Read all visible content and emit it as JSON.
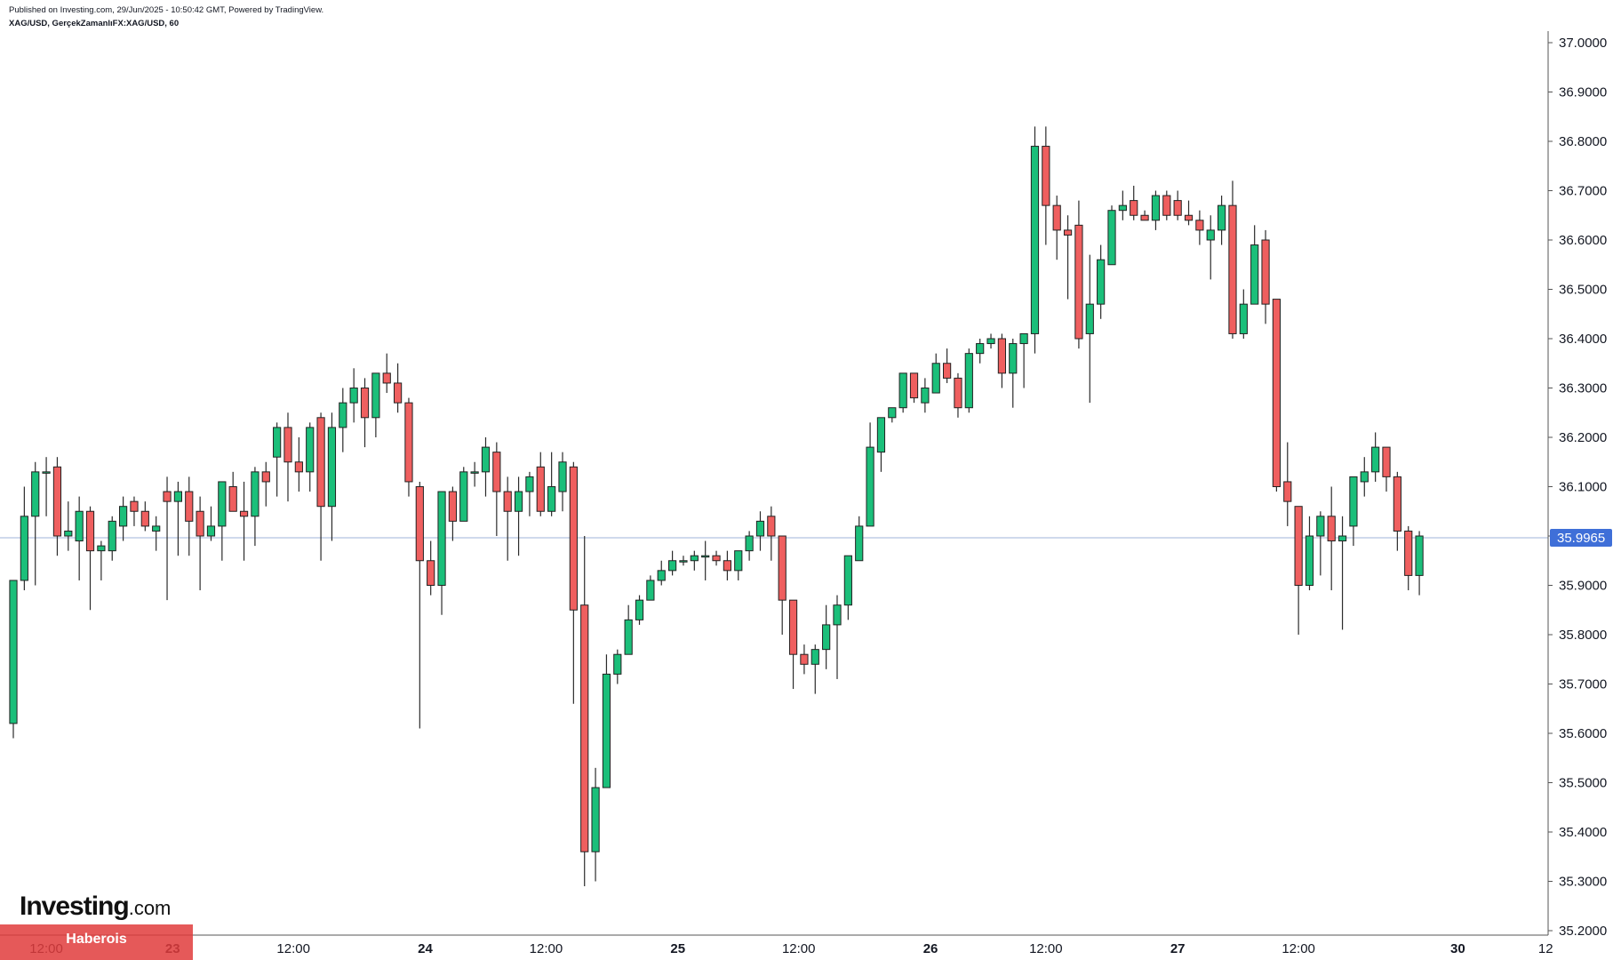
{
  "header": {
    "published": "Published on Investing.com, 29/Jun/2025 - 10:50:42 GMT, Powered by TradingView.",
    "symbol": "XAG/USD, GerçekZamanlıFX:XAG/USD, 60"
  },
  "logo": {
    "name": "Investing",
    "suffix": ".com"
  },
  "watermark": {
    "text": "Haberois"
  },
  "colors": {
    "up": "#1bbf7a",
    "down": "#ef5f5f",
    "wick": "#2b2b2b",
    "last_price": "#3f6fd8",
    "axis": "#555555"
  },
  "chart_data": {
    "type": "candlestick",
    "interval": "60",
    "ylim": [
      35.2,
      37.03
    ],
    "ytick_labels": [
      "35.2000",
      "35.3000",
      "35.4000",
      "35.5000",
      "35.6000",
      "35.7000",
      "35.8000",
      "35.9000",
      "36.0000",
      "36.1000",
      "36.2000",
      "36.3000",
      "36.4000",
      "36.5000",
      "36.6000",
      "36.7000",
      "36.8000",
      "36.9000",
      "37.0000"
    ],
    "yticks": [
      35.2,
      35.3,
      35.4,
      35.5,
      35.6,
      35.7,
      35.8,
      35.9,
      36.0,
      36.1,
      36.2,
      36.3,
      36.4,
      36.5,
      36.6,
      36.7,
      36.8,
      36.9,
      37.0
    ],
    "xlim": [
      0,
      140
    ],
    "xticks": [
      {
        "x": 3,
        "label": "12:00",
        "day": false
      },
      {
        "x": 14.5,
        "label": "23",
        "day": true
      },
      {
        "x": 25.5,
        "label": "12:00",
        "day": false
      },
      {
        "x": 37.5,
        "label": "24",
        "day": true
      },
      {
        "x": 48.5,
        "label": "12:00",
        "day": false
      },
      {
        "x": 60.5,
        "label": "25",
        "day": true
      },
      {
        "x": 71.5,
        "label": "12:00",
        "day": false
      },
      {
        "x": 83.5,
        "label": "26",
        "day": true
      },
      {
        "x": 94,
        "label": "12:00",
        "day": false
      },
      {
        "x": 106,
        "label": "27",
        "day": true
      },
      {
        "x": 117,
        "label": "12:00",
        "day": false
      },
      {
        "x": 131.5,
        "label": "30",
        "day": true
      },
      {
        "x": 139.5,
        "label": "12",
        "day": false
      }
    ],
    "last_price": 35.9965,
    "last_price_label": "35.9965",
    "candles": [
      {
        "o": 35.62,
        "h": 35.91,
        "l": 35.59,
        "c": 35.91
      },
      {
        "o": 35.91,
        "h": 36.1,
        "l": 35.89,
        "c": 36.04
      },
      {
        "o": 36.04,
        "h": 36.15,
        "l": 35.9,
        "c": 36.13
      },
      {
        "o": 36.13,
        "h": 36.16,
        "l": 36.04,
        "c": 36.13
      },
      {
        "o": 36.14,
        "h": 36.16,
        "l": 35.96,
        "c": 36.0
      },
      {
        "o": 36.0,
        "h": 36.07,
        "l": 35.97,
        "c": 36.01
      },
      {
        "o": 35.99,
        "h": 36.08,
        "l": 35.91,
        "c": 36.05
      },
      {
        "o": 36.05,
        "h": 36.06,
        "l": 35.85,
        "c": 35.97
      },
      {
        "o": 35.97,
        "h": 35.99,
        "l": 35.91,
        "c": 35.98
      },
      {
        "o": 35.97,
        "h": 36.04,
        "l": 35.95,
        "c": 36.03
      },
      {
        "o": 36.02,
        "h": 36.08,
        "l": 35.99,
        "c": 36.06
      },
      {
        "o": 36.07,
        "h": 36.08,
        "l": 36.02,
        "c": 36.05
      },
      {
        "o": 36.05,
        "h": 36.07,
        "l": 36.01,
        "c": 36.02
      },
      {
        "o": 36.01,
        "h": 36.04,
        "l": 35.97,
        "c": 36.02
      },
      {
        "o": 36.09,
        "h": 36.12,
        "l": 35.87,
        "c": 36.07
      },
      {
        "o": 36.07,
        "h": 36.11,
        "l": 35.96,
        "c": 36.09
      },
      {
        "o": 36.09,
        "h": 36.12,
        "l": 35.96,
        "c": 36.03
      },
      {
        "o": 36.05,
        "h": 36.08,
        "l": 35.89,
        "c": 36.0
      },
      {
        "o": 36.0,
        "h": 36.06,
        "l": 35.99,
        "c": 36.02
      },
      {
        "o": 36.02,
        "h": 36.11,
        "l": 35.95,
        "c": 36.11
      },
      {
        "o": 36.1,
        "h": 36.13,
        "l": 36.05,
        "c": 36.05
      },
      {
        "o": 36.05,
        "h": 36.11,
        "l": 35.95,
        "c": 36.04
      },
      {
        "o": 36.04,
        "h": 36.14,
        "l": 35.98,
        "c": 36.13
      },
      {
        "o": 36.13,
        "h": 36.15,
        "l": 36.06,
        "c": 36.11
      },
      {
        "o": 36.16,
        "h": 36.23,
        "l": 36.08,
        "c": 36.22
      },
      {
        "o": 36.22,
        "h": 36.25,
        "l": 36.07,
        "c": 36.15
      },
      {
        "o": 36.15,
        "h": 36.2,
        "l": 36.09,
        "c": 36.13
      },
      {
        "o": 36.13,
        "h": 36.23,
        "l": 36.09,
        "c": 36.22
      },
      {
        "o": 36.24,
        "h": 36.25,
        "l": 35.95,
        "c": 36.06
      },
      {
        "o": 36.06,
        "h": 36.25,
        "l": 35.99,
        "c": 36.22
      },
      {
        "o": 36.22,
        "h": 36.3,
        "l": 36.17,
        "c": 36.27
      },
      {
        "o": 36.27,
        "h": 36.34,
        "l": 36.23,
        "c": 36.3
      },
      {
        "o": 36.3,
        "h": 36.32,
        "l": 36.18,
        "c": 36.24
      },
      {
        "o": 36.24,
        "h": 36.33,
        "l": 36.2,
        "c": 36.33
      },
      {
        "o": 36.33,
        "h": 36.37,
        "l": 36.29,
        "c": 36.31
      },
      {
        "o": 36.31,
        "h": 36.35,
        "l": 36.25,
        "c": 36.27
      },
      {
        "o": 36.27,
        "h": 36.28,
        "l": 36.08,
        "c": 36.11
      },
      {
        "o": 36.1,
        "h": 36.11,
        "l": 35.61,
        "c": 35.95
      },
      {
        "o": 35.95,
        "h": 35.99,
        "l": 35.88,
        "c": 35.9
      },
      {
        "o": 35.9,
        "h": 36.09,
        "l": 35.84,
        "c": 36.09
      },
      {
        "o": 36.09,
        "h": 36.1,
        "l": 35.99,
        "c": 36.03
      },
      {
        "o": 36.03,
        "h": 36.14,
        "l": 36.03,
        "c": 36.13
      },
      {
        "o": 36.13,
        "h": 36.15,
        "l": 36.1,
        "c": 36.13
      },
      {
        "o": 36.13,
        "h": 36.2,
        "l": 36.08,
        "c": 36.18
      },
      {
        "o": 36.17,
        "h": 36.19,
        "l": 36.0,
        "c": 36.09
      },
      {
        "o": 36.09,
        "h": 36.12,
        "l": 35.95,
        "c": 36.05
      },
      {
        "o": 36.05,
        "h": 36.12,
        "l": 35.96,
        "c": 36.09
      },
      {
        "o": 36.09,
        "h": 36.13,
        "l": 36.04,
        "c": 36.12
      },
      {
        "o": 36.14,
        "h": 36.17,
        "l": 36.04,
        "c": 36.05
      },
      {
        "o": 36.05,
        "h": 36.17,
        "l": 36.04,
        "c": 36.1
      },
      {
        "o": 36.09,
        "h": 36.17,
        "l": 36.05,
        "c": 36.15
      },
      {
        "o": 36.14,
        "h": 36.15,
        "l": 35.66,
        "c": 35.85
      },
      {
        "o": 35.86,
        "h": 36.0,
        "l": 35.29,
        "c": 35.36
      },
      {
        "o": 35.36,
        "h": 35.53,
        "l": 35.3,
        "c": 35.49
      },
      {
        "o": 35.49,
        "h": 35.76,
        "l": 35.49,
        "c": 35.72
      },
      {
        "o": 35.72,
        "h": 35.77,
        "l": 35.7,
        "c": 35.76
      },
      {
        "o": 35.76,
        "h": 35.86,
        "l": 35.76,
        "c": 35.83
      },
      {
        "o": 35.83,
        "h": 35.88,
        "l": 35.82,
        "c": 35.87
      },
      {
        "o": 35.87,
        "h": 35.92,
        "l": 35.87,
        "c": 35.91
      },
      {
        "o": 35.91,
        "h": 35.95,
        "l": 35.9,
        "c": 35.93
      },
      {
        "o": 35.93,
        "h": 35.97,
        "l": 35.92,
        "c": 35.95
      },
      {
        "o": 35.95,
        "h": 35.96,
        "l": 35.94,
        "c": 35.95
      },
      {
        "o": 35.95,
        "h": 35.97,
        "l": 35.93,
        "c": 35.96
      },
      {
        "o": 35.96,
        "h": 35.99,
        "l": 35.91,
        "c": 35.96
      },
      {
        "o": 35.96,
        "h": 35.97,
        "l": 35.94,
        "c": 35.95
      },
      {
        "o": 35.95,
        "h": 35.97,
        "l": 35.91,
        "c": 35.93
      },
      {
        "o": 35.93,
        "h": 35.97,
        "l": 35.91,
        "c": 35.97
      },
      {
        "o": 35.97,
        "h": 36.01,
        "l": 35.95,
        "c": 36.0
      },
      {
        "o": 36.0,
        "h": 36.05,
        "l": 35.97,
        "c": 36.03
      },
      {
        "o": 36.04,
        "h": 36.06,
        "l": 35.95,
        "c": 36.0
      },
      {
        "o": 36.0,
        "h": 36.0,
        "l": 35.8,
        "c": 35.87
      },
      {
        "o": 35.87,
        "h": 35.87,
        "l": 35.69,
        "c": 35.76
      },
      {
        "o": 35.76,
        "h": 35.78,
        "l": 35.72,
        "c": 35.74
      },
      {
        "o": 35.74,
        "h": 35.78,
        "l": 35.68,
        "c": 35.77
      },
      {
        "o": 35.77,
        "h": 35.86,
        "l": 35.73,
        "c": 35.82
      },
      {
        "o": 35.82,
        "h": 35.88,
        "l": 35.71,
        "c": 35.86
      },
      {
        "o": 35.86,
        "h": 35.96,
        "l": 35.83,
        "c": 35.96
      },
      {
        "o": 35.95,
        "h": 36.04,
        "l": 35.95,
        "c": 36.02
      },
      {
        "o": 36.02,
        "h": 36.23,
        "l": 36.02,
        "c": 36.18
      },
      {
        "o": 36.17,
        "h": 36.24,
        "l": 36.13,
        "c": 36.24
      },
      {
        "o": 36.24,
        "h": 36.26,
        "l": 36.23,
        "c": 36.26
      },
      {
        "o": 36.26,
        "h": 36.33,
        "l": 36.25,
        "c": 36.33
      },
      {
        "o": 36.33,
        "h": 36.33,
        "l": 36.27,
        "c": 36.28
      },
      {
        "o": 36.27,
        "h": 36.32,
        "l": 36.25,
        "c": 36.3
      },
      {
        "o": 36.29,
        "h": 36.37,
        "l": 36.29,
        "c": 36.35
      },
      {
        "o": 36.35,
        "h": 36.38,
        "l": 36.31,
        "c": 36.32
      },
      {
        "o": 36.32,
        "h": 36.33,
        "l": 36.24,
        "c": 36.26
      },
      {
        "o": 36.26,
        "h": 36.38,
        "l": 36.25,
        "c": 36.37
      },
      {
        "o": 36.37,
        "h": 36.4,
        "l": 36.35,
        "c": 36.39
      },
      {
        "o": 36.39,
        "h": 36.41,
        "l": 36.38,
        "c": 36.4
      },
      {
        "o": 36.4,
        "h": 36.41,
        "l": 36.3,
        "c": 36.33
      },
      {
        "o": 36.33,
        "h": 36.4,
        "l": 36.26,
        "c": 36.39
      },
      {
        "o": 36.39,
        "h": 36.4,
        "l": 36.3,
        "c": 36.41
      },
      {
        "o": 36.41,
        "h": 36.83,
        "l": 36.37,
        "c": 36.79
      },
      {
        "o": 36.79,
        "h": 36.83,
        "l": 36.59,
        "c": 36.67
      },
      {
        "o": 36.67,
        "h": 36.69,
        "l": 36.56,
        "c": 36.62
      },
      {
        "o": 36.62,
        "h": 36.65,
        "l": 36.48,
        "c": 36.61
      },
      {
        "o": 36.63,
        "h": 36.68,
        "l": 36.38,
        "c": 36.4
      },
      {
        "o": 36.41,
        "h": 36.57,
        "l": 36.27,
        "c": 36.47
      },
      {
        "o": 36.47,
        "h": 36.59,
        "l": 36.44,
        "c": 36.56
      },
      {
        "o": 36.55,
        "h": 36.67,
        "l": 36.55,
        "c": 36.66
      },
      {
        "o": 36.66,
        "h": 36.7,
        "l": 36.64,
        "c": 36.67
      },
      {
        "o": 36.68,
        "h": 36.71,
        "l": 36.64,
        "c": 36.65
      },
      {
        "o": 36.65,
        "h": 36.66,
        "l": 36.64,
        "c": 36.64
      },
      {
        "o": 36.64,
        "h": 36.7,
        "l": 36.62,
        "c": 36.69
      },
      {
        "o": 36.69,
        "h": 36.7,
        "l": 36.64,
        "c": 36.65
      },
      {
        "o": 36.68,
        "h": 36.7,
        "l": 36.64,
        "c": 36.65
      },
      {
        "o": 36.65,
        "h": 36.68,
        "l": 36.63,
        "c": 36.64
      },
      {
        "o": 36.64,
        "h": 36.66,
        "l": 36.59,
        "c": 36.62
      },
      {
        "o": 36.6,
        "h": 36.65,
        "l": 36.52,
        "c": 36.62
      },
      {
        "o": 36.62,
        "h": 36.69,
        "l": 36.59,
        "c": 36.67
      },
      {
        "o": 36.67,
        "h": 36.72,
        "l": 36.4,
        "c": 36.41
      },
      {
        "o": 36.41,
        "h": 36.5,
        "l": 36.4,
        "c": 36.47
      },
      {
        "o": 36.47,
        "h": 36.63,
        "l": 36.47,
        "c": 36.59
      },
      {
        "o": 36.6,
        "h": 36.62,
        "l": 36.43,
        "c": 36.47
      },
      {
        "o": 36.48,
        "h": 36.48,
        "l": 36.09,
        "c": 36.1
      },
      {
        "o": 36.11,
        "h": 36.19,
        "l": 36.02,
        "c": 36.07
      },
      {
        "o": 36.06,
        "h": 36.06,
        "l": 35.8,
        "c": 35.9
      },
      {
        "o": 35.9,
        "h": 36.04,
        "l": 35.89,
        "c": 36.0
      },
      {
        "o": 36.0,
        "h": 36.05,
        "l": 35.92,
        "c": 36.04
      },
      {
        "o": 36.04,
        "h": 36.1,
        "l": 35.89,
        "c": 35.99
      },
      {
        "o": 35.99,
        "h": 36.04,
        "l": 35.81,
        "c": 36.0
      },
      {
        "o": 36.02,
        "h": 36.12,
        "l": 35.98,
        "c": 36.12
      },
      {
        "o": 36.11,
        "h": 36.16,
        "l": 36.08,
        "c": 36.13
      },
      {
        "o": 36.13,
        "h": 36.21,
        "l": 36.11,
        "c": 36.18
      },
      {
        "o": 36.18,
        "h": 36.18,
        "l": 36.09,
        "c": 36.12
      },
      {
        "o": 36.12,
        "h": 36.13,
        "l": 35.97,
        "c": 36.01
      },
      {
        "o": 36.01,
        "h": 36.02,
        "l": 35.89,
        "c": 35.92
      },
      {
        "o": 35.92,
        "h": 36.01,
        "l": 35.88,
        "c": 36.0
      }
    ]
  }
}
